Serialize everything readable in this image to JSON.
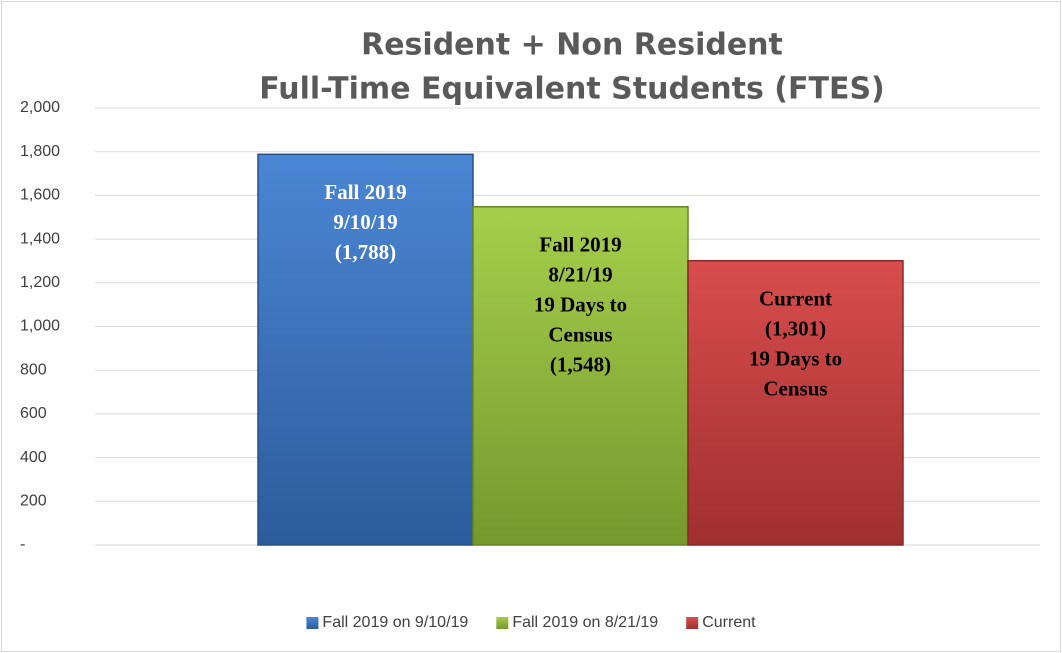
{
  "chart_data": {
    "type": "bar",
    "title": [
      "Resident + Non Resident",
      "Full-Time Equivalent Students (FTES)"
    ],
    "categories": [
      null
    ],
    "series": [
      {
        "name": "Fall 2019 on 9/10/19",
        "color": "#3b7bd0",
        "values": [
          1788
        ],
        "label_above": [
          "Fall 2019",
          "9/10/19"
        ],
        "value_labels": [
          "(1,788)"
        ],
        "label_below": [],
        "label_color": "#ffffff"
      },
      {
        "name": "Fall 2019 on 8/21/19",
        "color": "#9dcb3c",
        "values": [
          1548
        ],
        "label_above": [
          "Fall 2019",
          "8/21/19",
          "19 Days to",
          "Census"
        ],
        "value_labels": [
          "(1,548)"
        ],
        "label_below": [],
        "label_color": "#000000"
      },
      {
        "name": "Current",
        "color": "#d53e3e",
        "values": [
          1301
        ],
        "label_above": [
          "Current"
        ],
        "value_labels": [
          "(1,301)"
        ],
        "label_below": [
          "19 Days to",
          "Census"
        ],
        "label_color": "#000000"
      }
    ],
    "ylim": [
      0,
      2000
    ],
    "yticks": [
      {
        "value": 0,
        "label": "-"
      },
      200,
      400,
      600,
      800,
      {
        "value": 1000,
        "label": "1,000"
      },
      {
        "value": 1200,
        "label": "1,200"
      },
      {
        "value": 1400,
        "label": "1,400"
      },
      {
        "value": 1600,
        "label": "1,600"
      },
      {
        "value": 1800,
        "label": "1,800"
      },
      {
        "value": 2000,
        "label": "2,000"
      }
    ],
    "grid": true,
    "legend": "bottom"
  }
}
